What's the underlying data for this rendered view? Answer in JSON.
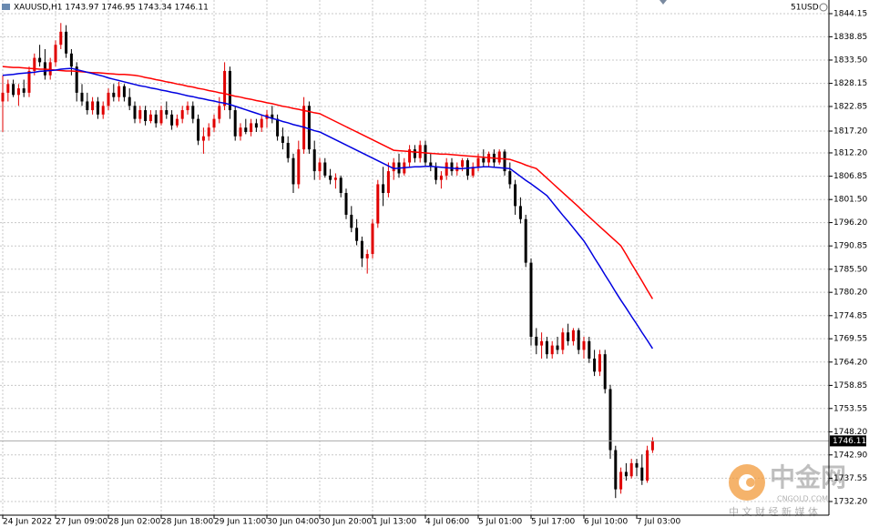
{
  "chart_data": {
    "type": "candlestick",
    "title": "XAUUSD,H1  1743.97 1746.95 1743.34 1746.11",
    "subtitle": "51USD",
    "watermark": {
      "name": "中金网",
      "url": "CNGOLD.COM",
      "slogan": "中 文 财 经 新 媒 体"
    },
    "up_color": "#e00000",
    "down_color": "#000000",
    "grid": true,
    "ylim": [
      1729.07,
      1847.28
    ],
    "yticks": [
      1844.15,
      1838.85,
      {
        "value": 1833.5,
        "label": "1833.50"
      },
      1828.15,
      1822.85,
      {
        "value": 1817.2,
        "label": "1817.20"
      },
      {
        "value": 1812.2,
        "label": "1812.20"
      },
      1806.85,
      {
        "value": 1801.5,
        "label": "1801.50"
      },
      {
        "value": 1796.2,
        "label": "1796.20"
      },
      1790.85,
      {
        "value": 1785.5,
        "label": "1785.50"
      },
      {
        "value": 1780.2,
        "label": "1780.20"
      },
      1774.85,
      1769.55,
      {
        "value": 1764.2,
        "label": "1764.20"
      },
      1758.85,
      1753.55,
      {
        "value": 1748.2,
        "label": "1748.20"
      },
      {
        "value": 1742.9,
        "label": "1742.90"
      },
      1737.55,
      {
        "value": 1732.2,
        "label": "1732.20"
      }
    ],
    "categories": [
      "24 Jun 2022",
      null,
      null,
      null,
      null,
      null,
      null,
      null,
      null,
      null,
      "27 Jun 09:00",
      null,
      null,
      null,
      null,
      null,
      null,
      null,
      null,
      null,
      "28 Jun 02:00",
      null,
      null,
      null,
      null,
      null,
      null,
      null,
      null,
      null,
      "28 Jun 18:00",
      null,
      null,
      null,
      null,
      null,
      null,
      null,
      null,
      null,
      "29 Jun 11:00",
      null,
      null,
      null,
      null,
      null,
      null,
      null,
      null,
      null,
      "30 Jun 04:00",
      null,
      null,
      null,
      null,
      null,
      null,
      null,
      null,
      null,
      "30 Jun 20:00",
      null,
      null,
      null,
      null,
      null,
      null,
      null,
      null,
      null,
      "1 Jul 13:00",
      null,
      null,
      null,
      null,
      null,
      null,
      null,
      null,
      null,
      "4 Jul 06:00",
      null,
      null,
      null,
      null,
      null,
      null,
      null,
      null,
      null,
      "5 Jul 01:00",
      null,
      null,
      null,
      null,
      null,
      null,
      null,
      null,
      null,
      "5 Jul 17:00",
      null,
      null,
      null,
      null,
      null,
      null,
      null,
      null,
      null,
      "6 Jul 10:00",
      null,
      null,
      null,
      null,
      null,
      null,
      null,
      null,
      null,
      "7 Jul 03:00",
      null,
      null,
      null
    ],
    "ohlc": [
      [
        1824,
        1830,
        1817,
        1826
      ],
      [
        1826,
        1829,
        1824,
        1828
      ],
      [
        1828,
        1829,
        1825,
        1825.5
      ],
      [
        1825.5,
        1828,
        1823,
        1827
      ],
      [
        1827,
        1829,
        1825,
        1826
      ],
      [
        1826,
        1832,
        1825,
        1831
      ],
      [
        1831,
        1835,
        1830,
        1834
      ],
      [
        1834,
        1837,
        1832,
        1833
      ],
      [
        1833,
        1836,
        1829,
        1830
      ],
      [
        1830,
        1834,
        1829,
        1833
      ],
      [
        1833,
        1838,
        1832,
        1837
      ],
      [
        1837,
        1842,
        1836,
        1840
      ],
      [
        1840,
        1841.5,
        1834,
        1835
      ],
      [
        1835,
        1836,
        1830,
        1832
      ],
      [
        1832,
        1833,
        1824,
        1826
      ],
      [
        1826,
        1828,
        1823,
        1824
      ],
      [
        1824,
        1826,
        1821,
        1822
      ],
      [
        1822,
        1825,
        1821,
        1824
      ],
      [
        1824,
        1825,
        1820,
        1821
      ],
      [
        1821,
        1824,
        1820,
        1823
      ],
      [
        1823,
        1827,
        1822,
        1826
      ],
      [
        1826,
        1828,
        1824,
        1825
      ],
      [
        1825,
        1828.5,
        1824,
        1827.5
      ],
      [
        1827.5,
        1828,
        1824,
        1825
      ],
      [
        1825,
        1827,
        1822,
        1823
      ],
      [
        1823,
        1824,
        1819,
        1820
      ],
      [
        1820,
        1823,
        1819,
        1822
      ],
      [
        1822,
        1823,
        1818.5,
        1819.5
      ],
      [
        1819.5,
        1822,
        1819,
        1821
      ],
      [
        1821,
        1822,
        1818,
        1819
      ],
      [
        1819,
        1823,
        1818.5,
        1822
      ],
      [
        1822,
        1824,
        1820,
        1821
      ],
      [
        1821,
        1822,
        1817.5,
        1818.5
      ],
      [
        1818.5,
        1821,
        1818,
        1820
      ],
      [
        1820,
        1823,
        1819,
        1822
      ],
      [
        1822,
        1824,
        1821,
        1823
      ],
      [
        1823,
        1824,
        1819,
        1820
      ],
      [
        1820,
        1821,
        1814,
        1815
      ],
      [
        1815,
        1818,
        1812,
        1816
      ],
      [
        1816,
        1819,
        1815,
        1818
      ],
      [
        1818,
        1821,
        1817,
        1820
      ],
      [
        1820,
        1825,
        1819,
        1823
      ],
      [
        1823,
        1833,
        1822,
        1831
      ],
      [
        1831,
        1832,
        1820,
        1822
      ],
      [
        1822,
        1823,
        1815,
        1816
      ],
      [
        1816,
        1819,
        1815,
        1818
      ],
      [
        1818,
        1820,
        1816.5,
        1817
      ],
      [
        1817,
        1820,
        1816,
        1819
      ],
      [
        1819,
        1820,
        1817,
        1818
      ],
      [
        1818,
        1821,
        1817,
        1820
      ],
      [
        1820,
        1822,
        1818,
        1821
      ],
      [
        1821,
        1823,
        1819,
        1820
      ],
      [
        1820,
        1821,
        1815,
        1816
      ],
      [
        1816,
        1818,
        1813,
        1814.5
      ],
      [
        1814.5,
        1816,
        1810,
        1811
      ],
      [
        1811,
        1812,
        1803,
        1805
      ],
      [
        1805,
        1815,
        1804,
        1813
      ],
      [
        1813,
        1825,
        1812,
        1823
      ],
      [
        1823,
        1824,
        1812,
        1813
      ],
      [
        1813,
        1815,
        1806,
        1808
      ],
      [
        1808,
        1811,
        1806,
        1810
      ],
      [
        1810,
        1811,
        1806.5,
        1807
      ],
      [
        1807,
        1808.5,
        1805,
        1806
      ],
      [
        1806,
        1807.5,
        1804,
        1806.5
      ],
      [
        1806.5,
        1807,
        1802,
        1803
      ],
      [
        1803,
        1804,
        1797,
        1798
      ],
      [
        1798,
        1800,
        1794,
        1795
      ],
      [
        1795,
        1797,
        1791,
        1792
      ],
      [
        1792,
        1793,
        1786,
        1788
      ],
      [
        1788,
        1790,
        1784.5,
        1789
      ],
      [
        1789,
        1797,
        1788,
        1796
      ],
      [
        1796,
        1806,
        1795,
        1805
      ],
      [
        1805,
        1809,
        1800,
        1803
      ],
      [
        1803,
        1810,
        1802,
        1808
      ],
      [
        1808,
        1811,
        1806,
        1810
      ],
      [
        1810,
        1812,
        1806.5,
        1807.5
      ],
      [
        1807.5,
        1811,
        1807,
        1810
      ],
      [
        1810,
        1814,
        1809,
        1813
      ],
      [
        1813,
        1814,
        1810,
        1811
      ],
      [
        1811,
        1815,
        1810,
        1814
      ],
      [
        1814,
        1815,
        1809,
        1810
      ],
      [
        1810,
        1812,
        1808,
        1809
      ],
      [
        1809,
        1810,
        1805,
        1806
      ],
      [
        1806,
        1808,
        1804,
        1807
      ],
      [
        1807,
        1811,
        1806,
        1810
      ],
      [
        1810,
        1811,
        1807,
        1808
      ],
      [
        1808,
        1810,
        1807,
        1809
      ],
      [
        1809,
        1811,
        1808,
        1810.5
      ],
      [
        1810.5,
        1811,
        1806,
        1807
      ],
      [
        1807,
        1810,
        1806.5,
        1809
      ],
      [
        1809,
        1812,
        1808,
        1811
      ],
      [
        1811,
        1813,
        1809,
        1810
      ],
      [
        1810,
        1812.5,
        1809,
        1812
      ],
      [
        1812,
        1813,
        1809,
        1810
      ],
      [
        1810,
        1813,
        1809.5,
        1812.5
      ],
      [
        1812.5,
        1813,
        1807,
        1808
      ],
      [
        1808,
        1810,
        1804,
        1805
      ],
      [
        1805,
        1806,
        1798,
        1800
      ],
      [
        1800,
        1802,
        1796,
        1797
      ],
      [
        1797,
        1798,
        1786,
        1787
      ],
      [
        1787,
        1788,
        1768,
        1770
      ],
      [
        1770,
        1772,
        1766,
        1768
      ],
      [
        1768,
        1771,
        1765,
        1769
      ],
      [
        1769,
        1770,
        1765,
        1766
      ],
      [
        1766,
        1769,
        1765,
        1768
      ],
      [
        1768,
        1770,
        1766,
        1767
      ],
      [
        1767,
        1772,
        1766,
        1771
      ],
      [
        1771,
        1773,
        1768,
        1769
      ],
      [
        1769,
        1772,
        1768,
        1771.5
      ],
      [
        1771.5,
        1772,
        1766,
        1767
      ],
      [
        1767,
        1770,
        1765,
        1769
      ],
      [
        1769,
        1770,
        1764,
        1765
      ],
      [
        1765,
        1767,
        1761,
        1762
      ],
      [
        1762,
        1767,
        1761,
        1766
      ],
      [
        1766,
        1767,
        1757,
        1758
      ],
      [
        1758,
        1759,
        1742,
        1744
      ],
      [
        1744,
        1745,
        1733,
        1735
      ],
      [
        1735,
        1740,
        1734,
        1739
      ],
      [
        1739,
        1741,
        1737,
        1738
      ],
      [
        1738,
        1742,
        1737.5,
        1741
      ],
      [
        1741,
        1742,
        1738,
        1740
      ],
      [
        1740,
        1743,
        1736,
        1737
      ],
      [
        1737,
        1745,
        1736.5,
        1743.97
      ],
      [
        1743.97,
        1746.95,
        1743.34,
        1746.11
      ]
    ],
    "series": [
      {
        "color": "#ff0000",
        "values": [
          1832.0,
          1831.9,
          1831.8,
          1831.8,
          1831.7,
          1831.6,
          1831.5,
          1831.4,
          1831.4,
          1831.3,
          1831.2,
          1831.1,
          1831.0,
          1831.0,
          1830.9,
          1830.8,
          1830.7,
          1830.6,
          1830.6,
          1830.5,
          1830.4,
          1830.3,
          1830.2,
          1830.2,
          1830.1,
          1830.0,
          1829.8,
          1829.5,
          1829.3,
          1829.0,
          1828.8,
          1828.5,
          1828.3,
          1828.0,
          1827.8,
          1827.5,
          1827.3,
          1827.0,
          1826.8,
          1826.5,
          1826.3,
          1826.0,
          1825.8,
          1825.5,
          1825.2,
          1825.0,
          1824.7,
          1824.5,
          1824.2,
          1824.0,
          1823.7,
          1823.5,
          1823.2,
          1822.9,
          1822.7,
          1822.4,
          1822.2,
          1821.9,
          1821.7,
          1821.4,
          1821.2,
          1820.6,
          1820.0,
          1819.4,
          1818.8,
          1818.2,
          1817.6,
          1817.0,
          1816.4,
          1815.8,
          1815.2,
          1814.6,
          1814.0,
          1813.4,
          1812.8,
          1812.7,
          1812.6,
          1812.5,
          1812.4,
          1812.3,
          1812.2,
          1812.1,
          1812.0,
          1811.9,
          1811.9,
          1811.8,
          1811.7,
          1811.6,
          1811.5,
          1811.4,
          1811.3,
          1811.2,
          1811.1,
          1811.0,
          1810.9,
          1810.8,
          1810.7,
          1810.3,
          1809.9,
          1809.4,
          1809.0,
          1808.6,
          1807.5,
          1806.4,
          1805.3,
          1804.2,
          1803.1,
          1802.0,
          1800.9,
          1799.8,
          1798.6,
          1797.5,
          1796.4,
          1795.3,
          1794.2,
          1793.1,
          1792.0,
          1790.9,
          1788.9,
          1786.8,
          1784.8,
          1782.8,
          1780.7,
          1778.7
        ]
      },
      {
        "color": "#0000e0",
        "values": [
          1830.0,
          1830.1,
          1830.2,
          1830.4,
          1830.5,
          1830.6,
          1830.7,
          1830.9,
          1831.0,
          1831.1,
          1831.2,
          1831.4,
          1831.5,
          1831.6,
          1831.3,
          1831.0,
          1830.7,
          1830.4,
          1830.1,
          1829.8,
          1829.4,
          1829.1,
          1828.8,
          1828.5,
          1828.2,
          1827.9,
          1827.6,
          1827.4,
          1827.1,
          1826.9,
          1826.6,
          1826.4,
          1826.1,
          1825.9,
          1825.6,
          1825.3,
          1825.1,
          1824.8,
          1824.6,
          1824.3,
          1824.1,
          1823.8,
          1823.6,
          1823.3,
          1822.9,
          1822.5,
          1822.1,
          1821.7,
          1821.3,
          1820.9,
          1820.5,
          1820.1,
          1819.8,
          1819.4,
          1819.1,
          1818.7,
          1818.4,
          1818.1,
          1817.7,
          1817.3,
          1817.0,
          1816.4,
          1815.8,
          1815.2,
          1814.6,
          1814.0,
          1813.4,
          1812.8,
          1812.2,
          1811.6,
          1811.0,
          1810.4,
          1809.8,
          1809.2,
          1808.6,
          1808.7,
          1808.8,
          1808.9,
          1809.0,
          1809.0,
          1809.1,
          1809.1,
          1809.0,
          1808.9,
          1808.8,
          1808.7,
          1808.6,
          1808.6,
          1808.7,
          1808.8,
          1808.9,
          1809.0,
          1809.0,
          1808.9,
          1808.8,
          1808.7,
          1808.6,
          1807.7,
          1806.8,
          1805.9,
          1805.1,
          1804.2,
          1803.3,
          1802.4,
          1800.9,
          1799.4,
          1797.9,
          1796.5,
          1795.0,
          1793.5,
          1792.0,
          1790.1,
          1788.1,
          1786.2,
          1784.2,
          1782.3,
          1780.3,
          1778.4,
          1776.6,
          1774.7,
          1772.9,
          1771.0,
          1769.2,
          1767.3
        ]
      }
    ]
  }
}
